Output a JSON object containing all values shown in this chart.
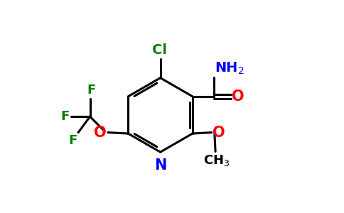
{
  "bg_color": "#ffffff",
  "bond_color": "#000000",
  "colors": {
    "N": "#0000ff",
    "O": "#ff0000",
    "Cl": "#008000",
    "F": "#008000",
    "NH2": "#0000ff",
    "C": "#000000"
  },
  "figsize": [
    4.84,
    3.0
  ],
  "dpi": 100
}
